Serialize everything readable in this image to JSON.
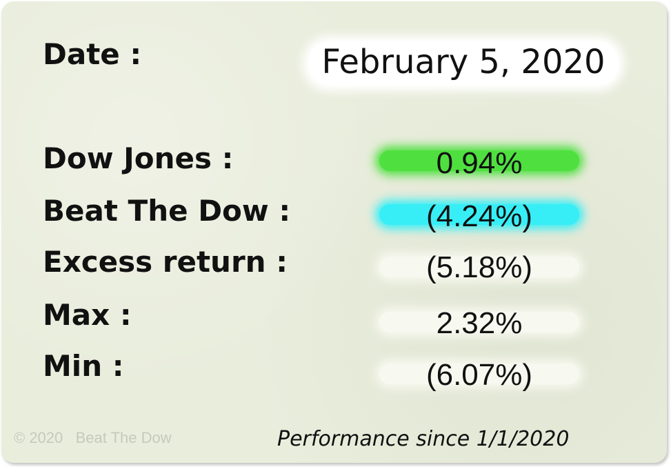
{
  "header": {
    "date_label": "Date :",
    "date_value": "February 5, 2020"
  },
  "rows": [
    {
      "label": "Dow Jones :",
      "value": "0.94%",
      "highlight_color": "#4fe040"
    },
    {
      "label": "Beat The Dow :",
      "value": "(4.24%)",
      "highlight_color": "#37eef6"
    },
    {
      "label": "Excess return :",
      "value": "(5.18%)",
      "highlight_color": "#f7f8ef"
    },
    {
      "label": "Max :",
      "value": "2.32%",
      "highlight_color": "#f7f8ef"
    },
    {
      "label": "Min :",
      "value": "(6.07%)",
      "highlight_color": "#f7f8ef"
    }
  ],
  "footer": {
    "copyright": "© 2020   Beat The Dow",
    "note": "Performance since 1/1/2020"
  },
  "colors": {
    "background": "#e9eddc",
    "text": "#111111",
    "copyright_text": "#c7c9bb"
  }
}
